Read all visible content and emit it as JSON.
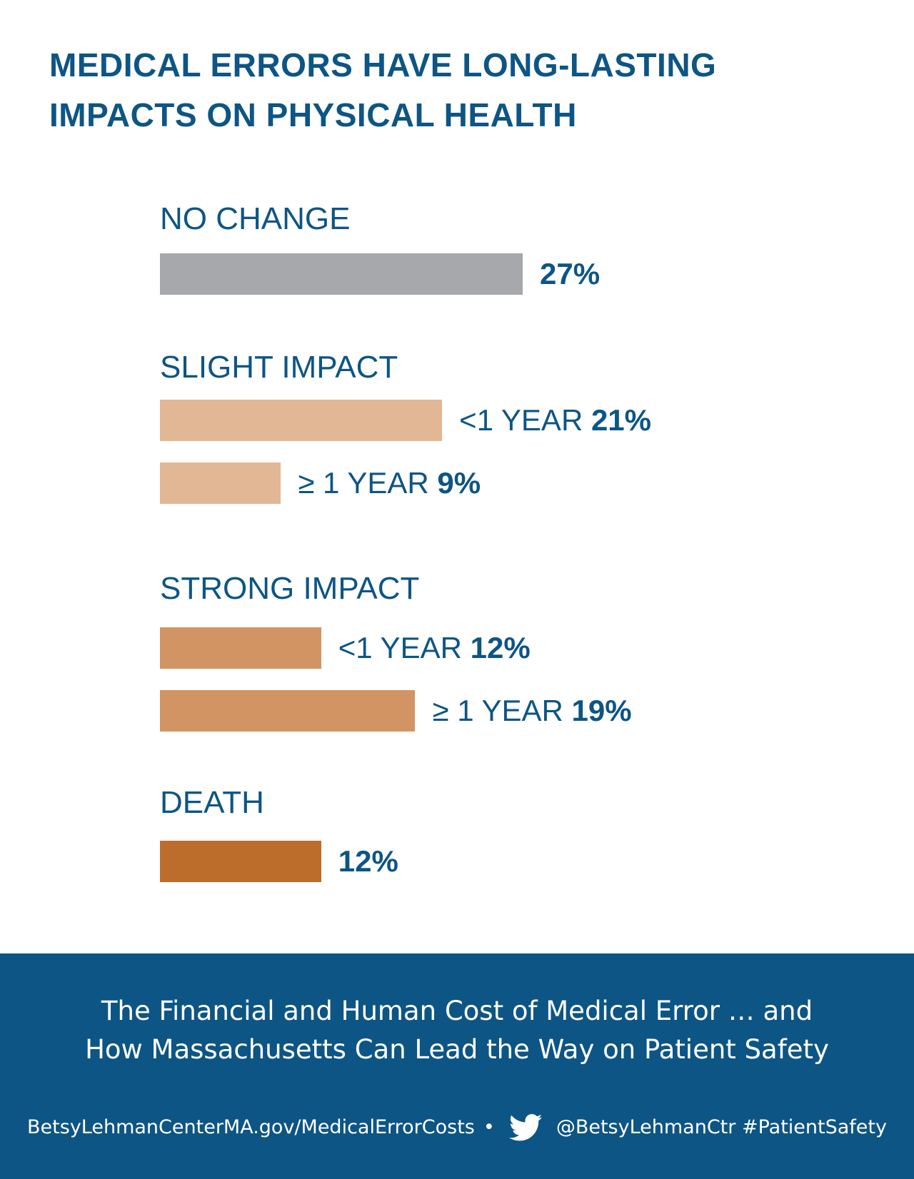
{
  "title": {
    "line1": "MEDICAL ERRORS HAVE LONG-LASTING",
    "line2": "IMPACTS ON PHYSICAL HEALTH"
  },
  "chart_data": {
    "type": "bar",
    "orientation": "horizontal",
    "unit": "%",
    "groups": [
      {
        "label": "NO CHANGE",
        "bars": [
          {
            "category": "",
            "value": 27,
            "color": "#a6a8ab"
          }
        ]
      },
      {
        "label": "SLIGHT IMPACT",
        "bars": [
          {
            "category": "<1 YEAR",
            "value": 21,
            "color": "#e2b795"
          },
          {
            "category": "≥ 1 YEAR",
            "value": 9,
            "color": "#e2b795"
          }
        ]
      },
      {
        "label": "STRONG IMPACT",
        "bars": [
          {
            "category": "<1 YEAR",
            "value": 12,
            "color": "#d29462"
          },
          {
            "category": "≥ 1 YEAR",
            "value": 19,
            "color": "#d29462"
          }
        ]
      },
      {
        "label": "DEATH",
        "bars": [
          {
            "category": "",
            "value": 12,
            "color": "#bd6d2b"
          }
        ]
      }
    ]
  },
  "footer": {
    "subtitle_line1": "The Financial and Human Cost of Medical Error … and",
    "subtitle_line2": "How Massachusetts Can Lead the Way on Patient Safety",
    "url": "BetsyLehmanCenterMA.gov/MedicalErrorCosts",
    "separator": "•",
    "handle": "@BetsyLehmanCtr #PatientSafety",
    "icon": "twitter-bird-icon"
  },
  "colors": {
    "brand_blue": "#0d5584",
    "no_change": "#a6a8ab",
    "slight": "#e2b795",
    "strong": "#d29462",
    "death": "#bd6d2b"
  }
}
